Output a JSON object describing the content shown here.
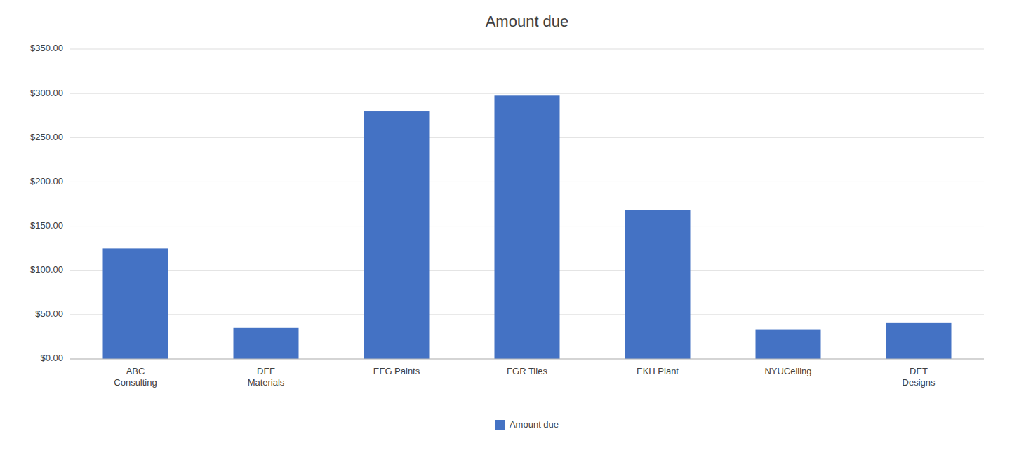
{
  "chart_data": {
    "type": "bar",
    "title": "Amount due",
    "categories": [
      "ABC\nConsulting",
      "DEF\nMaterials",
      "EFG Paints",
      "FGR Tiles",
      "EKH Plant",
      "NYUCeiling",
      "DET\nDesigns"
    ],
    "series": [
      {
        "name": "Amount due",
        "color": "#4472C4",
        "values": [
          124.8,
          35.0,
          279.5,
          297.5,
          168.0,
          32.8,
          40.5
        ]
      }
    ],
    "ylim": [
      0,
      350
    ],
    "yticks": [
      {
        "value": 0,
        "label": "$0.00"
      },
      {
        "value": 50,
        "label": "$50.00"
      },
      {
        "value": 100,
        "label": "$100.00"
      },
      {
        "value": 150,
        "label": "$150.00"
      },
      {
        "value": 200,
        "label": "$200.00"
      },
      {
        "value": 250,
        "label": "$250.00"
      },
      {
        "value": 300,
        "label": "$300.00"
      },
      {
        "value": 350,
        "label": "$350.00"
      }
    ],
    "grid": true,
    "legend": "bottom"
  }
}
